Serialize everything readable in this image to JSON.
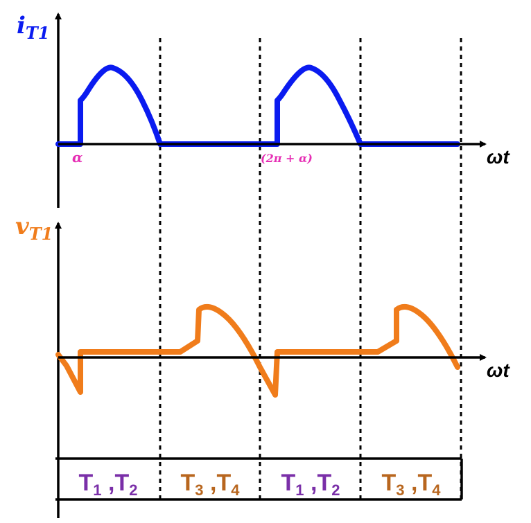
{
  "colors": {
    "current": "#0a1bf0",
    "voltage": "#f07c1b",
    "angle_label": "#e62eb4",
    "thyristor_pair_a": "#7a2fa8",
    "thyristor_pair_b": "#b8661e",
    "axis": "#000000"
  },
  "top_plot": {
    "y_label_main": "i",
    "y_label_sub": "T1",
    "x_label": "ωt",
    "angle_labels": [
      "α",
      "(2π + α)"
    ]
  },
  "bottom_plot": {
    "y_label_main": "v",
    "y_label_sub": "T1",
    "x_label": "ωt"
  },
  "conduction_table": [
    {
      "main1": "T",
      "sub1": "1",
      "sep": " ,",
      "main2": "T",
      "sub2": "2",
      "color_key": "thyristor_pair_a"
    },
    {
      "main1": "T",
      "sub1": "3",
      "sep": " ,",
      "main2": "T",
      "sub2": "4",
      "color_key": "thyristor_pair_b"
    },
    {
      "main1": "T",
      "sub1": "1",
      "sep": " ,",
      "main2": "T",
      "sub2": "2",
      "color_key": "thyristor_pair_a"
    },
    {
      "main1": "T",
      "sub1": "3",
      "sep": " ,",
      "main2": "T",
      "sub2": "4",
      "color_key": "thyristor_pair_b"
    }
  ]
}
